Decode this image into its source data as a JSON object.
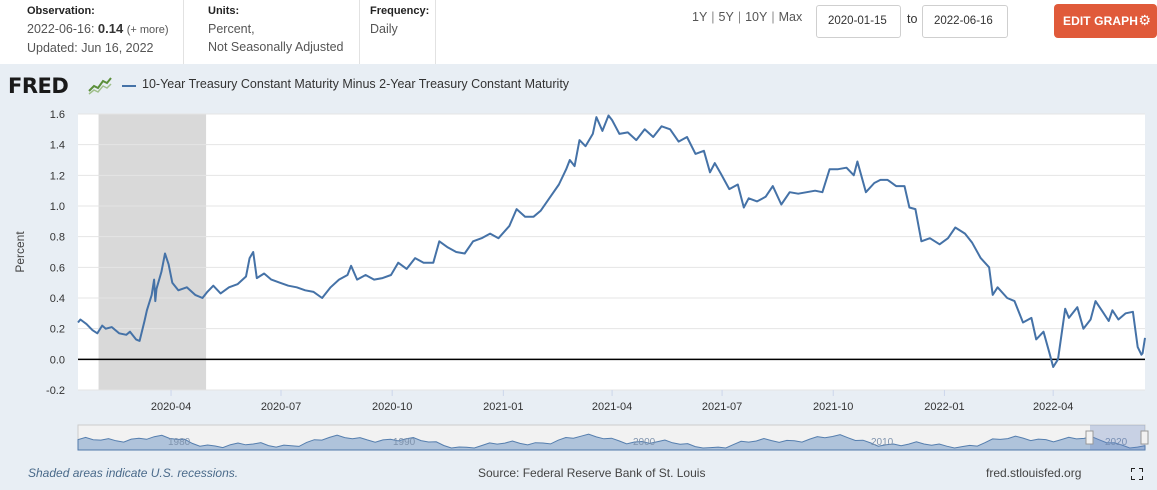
{
  "header": {
    "observation": {
      "label": "Observation:",
      "date": "2022-06-16:",
      "value": "0.14",
      "more": "(+ more)",
      "updated": "Updated: Jun 16, 2022"
    },
    "units": {
      "label": "Units:",
      "line1": "Percent,",
      "line2": "Not Seasonally Adjusted"
    },
    "frequency": {
      "label": "Frequency:",
      "value": "Daily"
    },
    "ranges": [
      "1Y",
      "5Y",
      "10Y",
      "Max"
    ],
    "date_from": "2020-01-15",
    "to_label": "to",
    "date_to": "2022-06-16",
    "edit_button": "EDIT GRAPH",
    "edit_icon": "gear-icon"
  },
  "logo": "FRED",
  "legend": "10-Year Treasury Constant Maturity Minus 2-Year Treasury Constant Maturity",
  "footer": {
    "note": "Shaded areas indicate U.S. recessions.",
    "source": "Source: Federal Reserve Bank of St. Louis",
    "url": "fred.stlouisfed.org"
  },
  "colors": {
    "series": "#4572a7",
    "recession": "#d9d9d9",
    "edit_button": "#e05a3a",
    "plot_background": "#ffffff",
    "frame_background": "#e8eef4"
  },
  "chart_data": {
    "type": "line",
    "title": "10-Year Treasury Constant Maturity Minus 2-Year Treasury Constant Maturity",
    "xlabel": "",
    "ylabel": "Percent",
    "ylim": [
      -0.2,
      1.6
    ],
    "yticks": [
      -0.2,
      0.0,
      0.2,
      0.4,
      0.6,
      0.8,
      1.0,
      1.2,
      1.4,
      1.6
    ],
    "ytick_labels": [
      "-0.2",
      "0.0",
      "0.2",
      "0.4",
      "0.6",
      "0.8",
      "1.0",
      "1.2",
      "1.4",
      "1.6"
    ],
    "xlim": [
      "2020-01-15",
      "2022-06-16"
    ],
    "xticks": [
      "2020-04-01",
      "2020-07-01",
      "2020-10-01",
      "2021-01-01",
      "2021-04-01",
      "2021-07-01",
      "2021-10-01",
      "2022-01-01",
      "2022-04-01"
    ],
    "xtick_labels": [
      "2020-04",
      "2020-07",
      "2020-10",
      "2021-01",
      "2021-04",
      "2021-07",
      "2021-10",
      "2022-01",
      "2022-04"
    ],
    "recessions": [
      {
        "start": "2020-02-01",
        "end": "2020-04-30"
      }
    ],
    "navigator_labels": [
      "1980",
      "1990",
      "2000",
      "2010",
      "2020"
    ],
    "grid": true,
    "series": [
      {
        "name": "10-Year Treasury Constant Maturity Minus 2-Year Treasury Constant Maturity",
        "points": [
          [
            "2020-01-15",
            0.24
          ],
          [
            "2020-01-17",
            0.26
          ],
          [
            "2020-01-22",
            0.23
          ],
          [
            "2020-01-27",
            0.19
          ],
          [
            "2020-01-31",
            0.17
          ],
          [
            "2020-02-04",
            0.22
          ],
          [
            "2020-02-07",
            0.2
          ],
          [
            "2020-02-12",
            0.21
          ],
          [
            "2020-02-18",
            0.17
          ],
          [
            "2020-02-24",
            0.16
          ],
          [
            "2020-02-27",
            0.18
          ],
          [
            "2020-03-03",
            0.13
          ],
          [
            "2020-03-06",
            0.12
          ],
          [
            "2020-03-10",
            0.25
          ],
          [
            "2020-03-12",
            0.32
          ],
          [
            "2020-03-16",
            0.42
          ],
          [
            "2020-03-18",
            0.52
          ],
          [
            "2020-03-19",
            0.38
          ],
          [
            "2020-03-20",
            0.46
          ],
          [
            "2020-03-24",
            0.57
          ],
          [
            "2020-03-27",
            0.69
          ],
          [
            "2020-03-30",
            0.62
          ],
          [
            "2020-04-02",
            0.5
          ],
          [
            "2020-04-07",
            0.45
          ],
          [
            "2020-04-14",
            0.47
          ],
          [
            "2020-04-21",
            0.42
          ],
          [
            "2020-04-27",
            0.4
          ],
          [
            "2020-05-01",
            0.44
          ],
          [
            "2020-05-06",
            0.48
          ],
          [
            "2020-05-12",
            0.43
          ],
          [
            "2020-05-19",
            0.47
          ],
          [
            "2020-05-26",
            0.49
          ],
          [
            "2020-06-02",
            0.54
          ],
          [
            "2020-06-05",
            0.66
          ],
          [
            "2020-06-08",
            0.7
          ],
          [
            "2020-06-11",
            0.53
          ],
          [
            "2020-06-17",
            0.56
          ],
          [
            "2020-06-23",
            0.52
          ],
          [
            "2020-06-30",
            0.5
          ],
          [
            "2020-07-07",
            0.48
          ],
          [
            "2020-07-14",
            0.47
          ],
          [
            "2020-07-21",
            0.45
          ],
          [
            "2020-07-28",
            0.44
          ],
          [
            "2020-08-04",
            0.4
          ],
          [
            "2020-08-11",
            0.47
          ],
          [
            "2020-08-18",
            0.52
          ],
          [
            "2020-08-25",
            0.55
          ],
          [
            "2020-08-28",
            0.61
          ],
          [
            "2020-09-02",
            0.52
          ],
          [
            "2020-09-09",
            0.55
          ],
          [
            "2020-09-16",
            0.52
          ],
          [
            "2020-09-23",
            0.53
          ],
          [
            "2020-09-30",
            0.55
          ],
          [
            "2020-10-06",
            0.63
          ],
          [
            "2020-10-13",
            0.59
          ],
          [
            "2020-10-20",
            0.66
          ],
          [
            "2020-10-27",
            0.63
          ],
          [
            "2020-11-04",
            0.63
          ],
          [
            "2020-11-09",
            0.77
          ],
          [
            "2020-11-16",
            0.73
          ],
          [
            "2020-11-23",
            0.7
          ],
          [
            "2020-11-30",
            0.69
          ],
          [
            "2020-12-07",
            0.77
          ],
          [
            "2020-12-14",
            0.79
          ],
          [
            "2020-12-21",
            0.82
          ],
          [
            "2020-12-28",
            0.79
          ],
          [
            "2021-01-06",
            0.87
          ],
          [
            "2021-01-12",
            0.98
          ],
          [
            "2021-01-19",
            0.93
          ],
          [
            "2021-01-26",
            0.93
          ],
          [
            "2021-02-01",
            0.97
          ],
          [
            "2021-02-08",
            1.05
          ],
          [
            "2021-02-16",
            1.14
          ],
          [
            "2021-02-22",
            1.24
          ],
          [
            "2021-02-25",
            1.3
          ],
          [
            "2021-03-01",
            1.26
          ],
          [
            "2021-03-05",
            1.43
          ],
          [
            "2021-03-10",
            1.39
          ],
          [
            "2021-03-16",
            1.47
          ],
          [
            "2021-03-19",
            1.58
          ],
          [
            "2021-03-24",
            1.49
          ],
          [
            "2021-03-29",
            1.59
          ],
          [
            "2021-04-01",
            1.56
          ],
          [
            "2021-04-07",
            1.47
          ],
          [
            "2021-04-14",
            1.48
          ],
          [
            "2021-04-21",
            1.43
          ],
          [
            "2021-04-28",
            1.5
          ],
          [
            "2021-05-05",
            1.45
          ],
          [
            "2021-05-12",
            1.52
          ],
          [
            "2021-05-19",
            1.5
          ],
          [
            "2021-05-26",
            1.42
          ],
          [
            "2021-06-02",
            1.45
          ],
          [
            "2021-06-09",
            1.34
          ],
          [
            "2021-06-16",
            1.36
          ],
          [
            "2021-06-21",
            1.22
          ],
          [
            "2021-06-25",
            1.28
          ],
          [
            "2021-06-30",
            1.21
          ],
          [
            "2021-07-07",
            1.11
          ],
          [
            "2021-07-14",
            1.14
          ],
          [
            "2021-07-19",
            0.99
          ],
          [
            "2021-07-23",
            1.05
          ],
          [
            "2021-07-30",
            1.03
          ],
          [
            "2021-08-06",
            1.06
          ],
          [
            "2021-08-12",
            1.13
          ],
          [
            "2021-08-19",
            1.01
          ],
          [
            "2021-08-26",
            1.09
          ],
          [
            "2021-09-02",
            1.08
          ],
          [
            "2021-09-09",
            1.09
          ],
          [
            "2021-09-16",
            1.1
          ],
          [
            "2021-09-22",
            1.09
          ],
          [
            "2021-09-28",
            1.24
          ],
          [
            "2021-10-05",
            1.24
          ],
          [
            "2021-10-12",
            1.25
          ],
          [
            "2021-10-18",
            1.2
          ],
          [
            "2021-10-21",
            1.29
          ],
          [
            "2021-10-28",
            1.09
          ],
          [
            "2021-11-04",
            1.15
          ],
          [
            "2021-11-09",
            1.17
          ],
          [
            "2021-11-15",
            1.17
          ],
          [
            "2021-11-22",
            1.13
          ],
          [
            "2021-11-29",
            1.13
          ],
          [
            "2021-12-03",
            0.99
          ],
          [
            "2021-12-08",
            0.98
          ],
          [
            "2021-12-13",
            0.77
          ],
          [
            "2021-12-20",
            0.79
          ],
          [
            "2021-12-28",
            0.75
          ],
          [
            "2022-01-04",
            0.79
          ],
          [
            "2022-01-10",
            0.86
          ],
          [
            "2022-01-18",
            0.82
          ],
          [
            "2022-01-24",
            0.76
          ],
          [
            "2022-01-31",
            0.66
          ],
          [
            "2022-02-07",
            0.6
          ],
          [
            "2022-02-10",
            0.42
          ],
          [
            "2022-02-14",
            0.47
          ],
          [
            "2022-02-22",
            0.4
          ],
          [
            "2022-02-28",
            0.38
          ],
          [
            "2022-03-07",
            0.24
          ],
          [
            "2022-03-14",
            0.27
          ],
          [
            "2022-03-18",
            0.13
          ],
          [
            "2022-03-24",
            0.18
          ],
          [
            "2022-03-29",
            0.04
          ],
          [
            "2022-04-01",
            -0.05
          ],
          [
            "2022-04-05",
            0.0
          ],
          [
            "2022-04-11",
            0.33
          ],
          [
            "2022-04-14",
            0.27
          ],
          [
            "2022-04-21",
            0.34
          ],
          [
            "2022-04-26",
            0.2
          ],
          [
            "2022-05-02",
            0.26
          ],
          [
            "2022-05-06",
            0.38
          ],
          [
            "2022-05-12",
            0.31
          ],
          [
            "2022-05-17",
            0.25
          ],
          [
            "2022-05-20",
            0.32
          ],
          [
            "2022-05-25",
            0.26
          ],
          [
            "2022-05-31",
            0.3
          ],
          [
            "2022-06-06",
            0.31
          ],
          [
            "2022-06-10",
            0.08
          ],
          [
            "2022-06-13",
            0.03
          ],
          [
            "2022-06-14",
            0.04
          ],
          [
            "2022-06-16",
            0.14
          ]
        ]
      }
    ]
  }
}
